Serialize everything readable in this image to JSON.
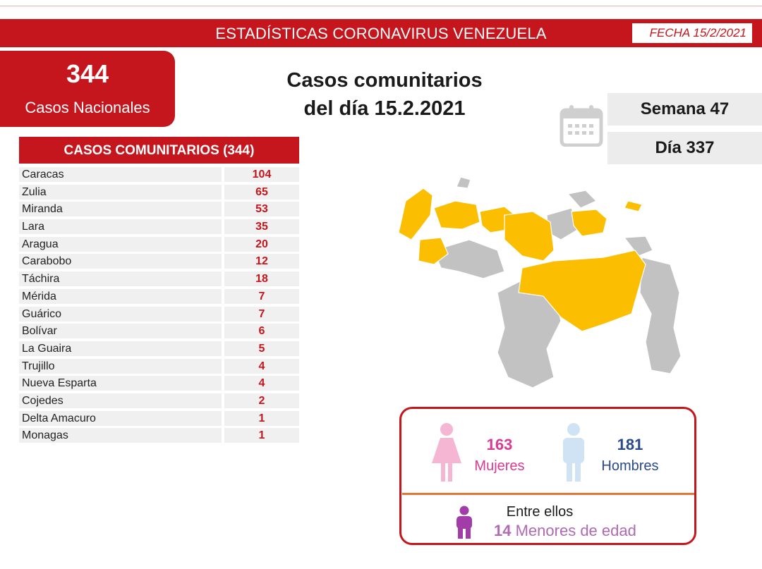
{
  "banner": {
    "title": "ESTADÍSTICAS CORONAVIRUS VENEZUELA",
    "fecha": "FECHA 15/2/2021"
  },
  "nacional": {
    "count": "344",
    "label": "Casos Nacionales"
  },
  "headline": {
    "line1": "Casos comunitarios",
    "line2": "del día 15.2.2021"
  },
  "semana": "Semana 47",
  "dia": "Día 337",
  "table": {
    "header": "CASOS COMUNITARIOS (344)",
    "rows": [
      {
        "state": "Caracas",
        "cases": "104"
      },
      {
        "state": "Zulia",
        "cases": "65"
      },
      {
        "state": "Miranda",
        "cases": "53"
      },
      {
        "state": "Lara",
        "cases": "35"
      },
      {
        "state": "Aragua",
        "cases": "20"
      },
      {
        "state": "Carabobo",
        "cases": "12"
      },
      {
        "state": "Táchira",
        "cases": "18"
      },
      {
        "state": "Mérida",
        "cases": "7"
      },
      {
        "state": "Guárico",
        "cases": "7"
      },
      {
        "state": "Bolívar",
        "cases": "6"
      },
      {
        "state": "La Guaira",
        "cases": "5"
      },
      {
        "state": "Trujillo",
        "cases": "4"
      },
      {
        "state": "Nueva Esparta",
        "cases": "4"
      },
      {
        "state": "Cojedes",
        "cases": "2"
      },
      {
        "state": "Delta Amacuro",
        "cases": "1"
      },
      {
        "state": "Monagas",
        "cases": "1"
      }
    ]
  },
  "gender": {
    "female_count": "163",
    "female_label": "Mujeres",
    "male_count": "181",
    "male_label": "Hombres",
    "entre": "Entre ellos",
    "minors_count": "14",
    "minors_label": "Menores de edad"
  },
  "colors": {
    "primary_red": "#c5161d",
    "affected_state": "#fbbe00",
    "unaffected_state": "#c2c2c2",
    "female": "#d93a94",
    "male": "#2b4a8a",
    "minors": "#b06ab3",
    "divider": "#e8743b"
  },
  "icons": {
    "calendar": "calendar-icon",
    "female": "female-person-icon",
    "male": "male-person-icon",
    "child": "child-icon"
  }
}
